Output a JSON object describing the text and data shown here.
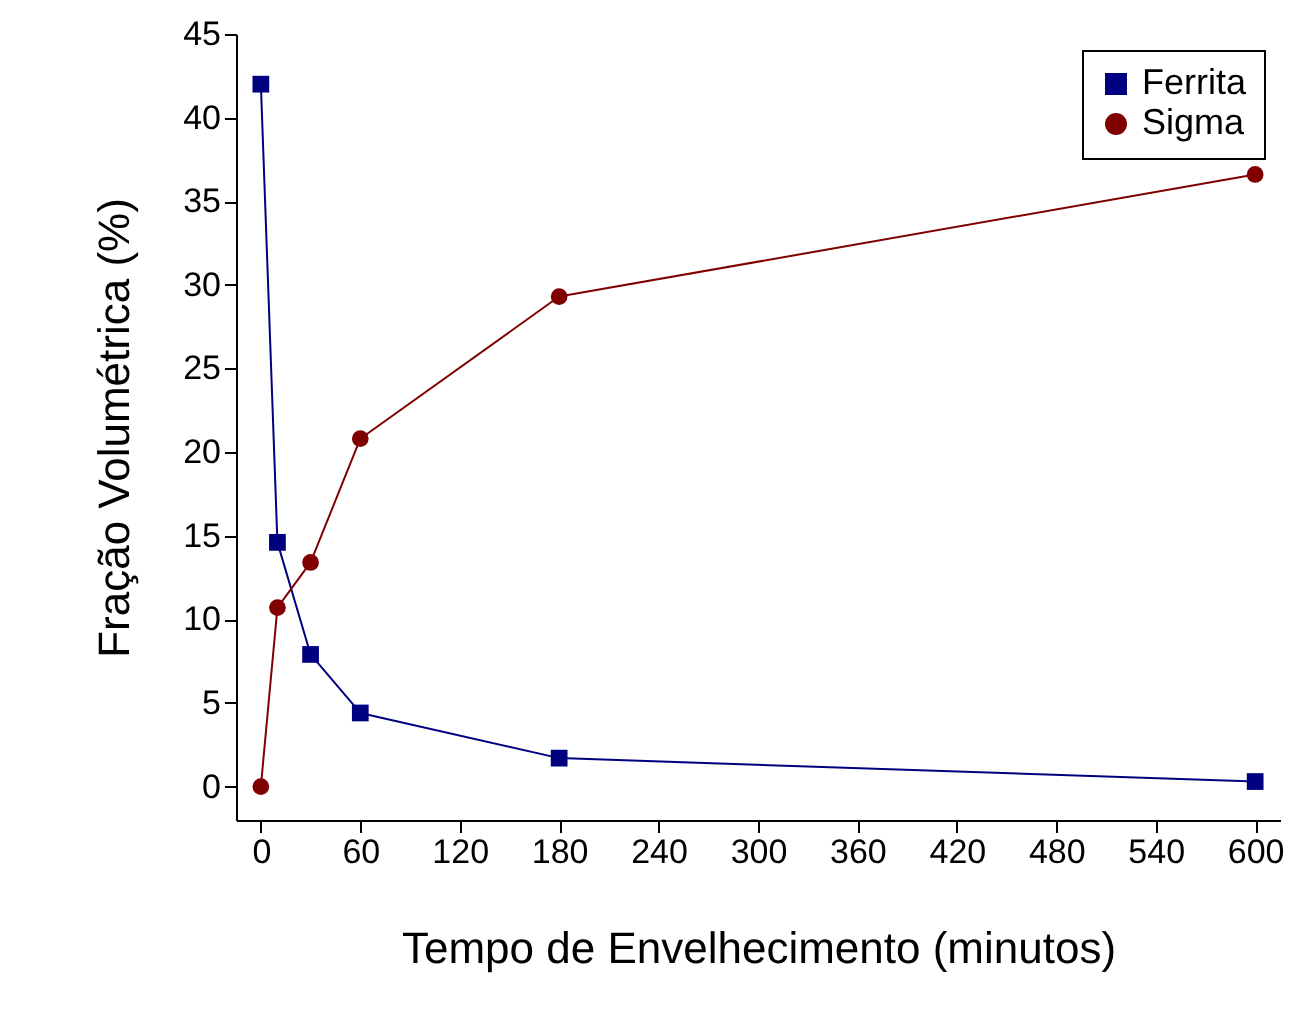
{
  "chart_data": {
    "type": "line",
    "xlabel": "Tempo de Envelhecimento (minutos)",
    "ylabel": "Fração Volumétrica (%)",
    "x": [
      0,
      10,
      30,
      60,
      180,
      600
    ],
    "series": [
      {
        "name": "Ferrita",
        "color": "#000080",
        "marker": "square",
        "values": [
          42.0,
          14.6,
          7.9,
          4.4,
          1.7,
          0.3
        ]
      },
      {
        "name": "Sigma",
        "color": "#800000",
        "marker": "circle",
        "values": [
          0,
          10.7,
          13.4,
          20.8,
          29.3,
          36.6
        ]
      }
    ],
    "xlim": [
      -15,
      615
    ],
    "xticks": [
      0,
      60,
      120,
      180,
      240,
      300,
      360,
      420,
      480,
      540,
      600
    ],
    "ylim": [
      -2,
      45
    ],
    "yticks": [
      0,
      5,
      10,
      15,
      20,
      25,
      30,
      35,
      40,
      45
    ],
    "grid": false,
    "legend": "top right",
    "line_style": "solid"
  }
}
